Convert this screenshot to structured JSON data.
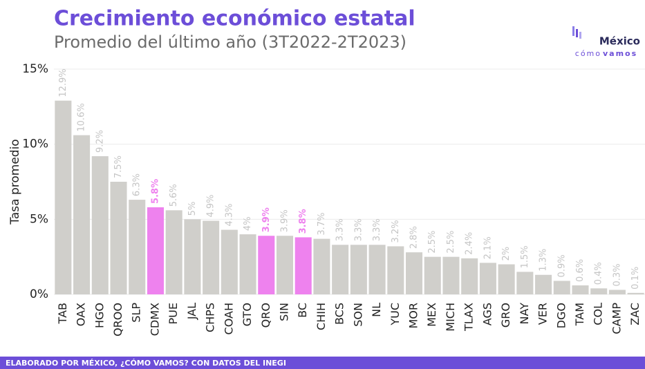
{
  "chart_data": {
    "type": "bar",
    "title": "Crecimiento económico estatal",
    "subtitle": "Promedio del último año (3T2022-2T2023)",
    "y_label": "Tasa promedio",
    "logo": {
      "name": "México",
      "tagline_a": "cómo",
      "tagline_b": "vamos"
    },
    "footer": "ELABORADO POR MÉXICO, ¿CÓMO VAMOS? CON DATOS DEL INEGI",
    "categories": [
      "TAB",
      "OAX",
      "HGO",
      "QROO",
      "SLP",
      "CDMX",
      "PUE",
      "JAL",
      "CHPS",
      "COAH",
      "GTO",
      "QRO",
      "SIN",
      "BC",
      "CHIH",
      "BCS",
      "SON",
      "NL",
      "YUC",
      "MOR",
      "MEX",
      "MICH",
      "TLAX",
      "AGS",
      "GRO",
      "NAY",
      "VER",
      "DGO",
      "TAM",
      "COL",
      "CAMP",
      "ZAC"
    ],
    "values": [
      12.9,
      10.6,
      9.2,
      7.5,
      6.3,
      5.8,
      5.6,
      5,
      4.9,
      4.3,
      4,
      3.9,
      3.9,
      3.8,
      3.7,
      3.3,
      3.3,
      3.3,
      3.2,
      2.8,
      2.5,
      2.5,
      2.4,
      2.1,
      2,
      1.5,
      1.3,
      0.9,
      0.6,
      0.4,
      0.3,
      0.1
    ],
    "value_labels": [
      "12.9%",
      "10.6%",
      "9.2%",
      "7.5%",
      "6.3%",
      "5.8%",
      "5.6%",
      "5%",
      "4.9%",
      "4.3%",
      "4%",
      "3.9%",
      "3.9%",
      "3.8%",
      "3.7%",
      "3.3%",
      "3.3%",
      "3.3%",
      "3.2%",
      "2.8%",
      "2.5%",
      "2.5%",
      "2.4%",
      "2.1%",
      "2%",
      "1.5%",
      "1.3%",
      "0.9%",
      "0.6%",
      "0.4%",
      "0.3%",
      "0.1%"
    ],
    "color": "#d0cfcb",
    "colors": [
      "#d0cfcb",
      "#d0cfcb",
      "#d0cfcb",
      "#d0cfcb",
      "#d0cfcb",
      "#ee82ee",
      "#d0cfcb",
      "#d0cfcb",
      "#d0cfcb",
      "#d0cfcb",
      "#d0cfcb",
      "#ee82ee",
      "#d0cfcb",
      "#ee82ee",
      "#d0cfcb",
      "#d0cfcb",
      "#d0cfcb",
      "#d0cfcb",
      "#d0cfcb",
      "#d0cfcb",
      "#d0cfcb",
      "#d0cfcb",
      "#d0cfcb",
      "#d0cfcb",
      "#d0cfcb",
      "#d0cfcb",
      "#d0cfcb",
      "#d0cfcb",
      "#d0cfcb",
      "#d0cfcb",
      "#d0cfcb",
      "#d0cfcb"
    ],
    "ylim": [
      0,
      15
    ],
    "yticks": [
      {
        "value": 0,
        "label": "0%"
      },
      {
        "value": 5,
        "label": "5%"
      },
      {
        "value": 10,
        "label": "10%"
      },
      {
        "value": 15,
        "label": "15%"
      }
    ],
    "grid": true
  }
}
